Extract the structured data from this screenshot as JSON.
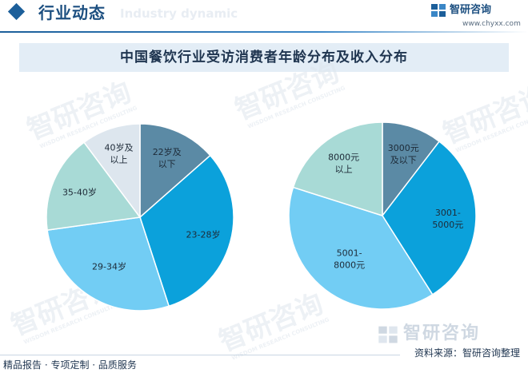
{
  "header": {
    "title": "行业动态",
    "ghost_text": "Industry dynamic"
  },
  "brand": {
    "name": "智研咨询",
    "url": "www.chyxx.com"
  },
  "watermark": {
    "text": "智研咨询",
    "subtext": "WISDOM RESEARCH CONSULTING"
  },
  "footer": {
    "brand_name": "智研咨询",
    "source": "资料来源：智研咨询整理",
    "services": "精品报告 · 专项定制 · 品质服务"
  },
  "colors": {
    "brand": "#1c5f9a",
    "title_bar": "#e3edf6"
  },
  "chart_data": [
    {
      "type": "pie",
      "title": "中国餐饮行业受访消费者年龄分布及收入分布",
      "start_angle_deg": 0,
      "direction": "clockwise",
      "categories": [
        "22岁及以下",
        "23-28岁",
        "29-34岁",
        "35-40岁",
        "40岁及以上"
      ],
      "label_lines": [
        [
          "22岁及",
          "以下"
        ],
        [
          "23-28岁"
        ],
        [
          "29-34岁"
        ],
        [
          "35-40岁"
        ],
        [
          "40岁及",
          "以上"
        ]
      ],
      "values": [
        13.5,
        31.5,
        27.8,
        17.0,
        10.2
      ],
      "colors": [
        "#5b8aa5",
        "#0ba1db",
        "#72cdf4",
        "#a8dad6",
        "#dde6ee"
      ]
    },
    {
      "type": "pie",
      "start_angle_deg": 0,
      "direction": "clockwise",
      "categories": [
        "3000元及以下",
        "3001-5000元",
        "5001-8000元",
        "8000元以上"
      ],
      "label_lines": [
        [
          "3000元",
          "及以下"
        ],
        [
          "3001-",
          "5000元"
        ],
        [
          "5001-",
          "8000元"
        ],
        [
          "8000元",
          "以上"
        ]
      ],
      "values": [
        10.4,
        30.6,
        38.9,
        20.1
      ],
      "colors": [
        "#5b8aa5",
        "#0ba1db",
        "#72cdf4",
        "#a8dad6"
      ]
    }
  ]
}
